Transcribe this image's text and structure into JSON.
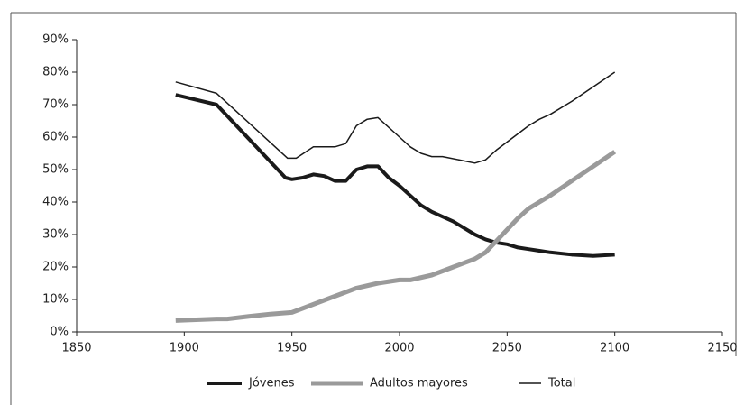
{
  "chart_data": {
    "type": "line",
    "xlim": [
      1850,
      2150
    ],
    "xticks": [
      1850,
      1900,
      1950,
      2000,
      2050,
      2100,
      2150
    ],
    "ylim": [
      0,
      90
    ],
    "yticks": [
      {
        "value": 0,
        "label": "0%"
      },
      {
        "value": 10,
        "label": "10%"
      },
      {
        "value": 20,
        "label": "20%"
      },
      {
        "value": 30,
        "label": "30%"
      },
      {
        "value": 40,
        "label": "40%"
      },
      {
        "value": 50,
        "label": "50%"
      },
      {
        "value": 60,
        "label": "60%"
      },
      {
        "value": 70,
        "label": "70%"
      },
      {
        "value": 80,
        "label": "80%"
      },
      {
        "value": 90,
        "label": "90%"
      }
    ],
    "grid": false,
    "legend": "bottom",
    "series": [
      {
        "name": "Jóvenes",
        "color": "#1a1a1a",
        "line_width": 4,
        "x": [
          1896,
          1915,
          1947,
          1950,
          1955,
          1960,
          1965,
          1970,
          1975,
          1980,
          1985,
          1990,
          1995,
          2000,
          2005,
          2010,
          2015,
          2020,
          2025,
          2030,
          2035,
          2040,
          2045,
          2050,
          2055,
          2060,
          2065,
          2070,
          2080,
          2090,
          2100
        ],
        "values": [
          73,
          70,
          47.5,
          47,
          47.5,
          48.5,
          48,
          46.5,
          46.5,
          50,
          51,
          51,
          47.5,
          45,
          42,
          39,
          37,
          35.5,
          34,
          32,
          30,
          28.5,
          27.5,
          27,
          26,
          25.5,
          25,
          24.5,
          23.8,
          23.4,
          23.8
        ]
      },
      {
        "name": "Adultos mayores",
        "color": "#9a9a9a",
        "line_width": 5,
        "x": [
          1896,
          1915,
          1920,
          1930,
          1940,
          1950,
          1960,
          1970,
          1980,
          1990,
          2000,
          2005,
          2015,
          2025,
          2035,
          2040,
          2045,
          2050,
          2055,
          2060,
          2065,
          2070,
          2080,
          2090,
          2100
        ],
        "values": [
          3.5,
          4,
          4,
          4.8,
          5.5,
          6,
          8.5,
          11,
          13.5,
          15,
          16,
          16,
          17.5,
          20,
          22.5,
          24.5,
          28,
          31.5,
          35,
          38,
          40,
          42,
          46.5,
          51,
          55.5
        ]
      },
      {
        "name": "Total",
        "color": "#1a1a1a",
        "line_width": 1.5,
        "x": [
          1896,
          1915,
          1948,
          1952,
          1960,
          1970,
          1975,
          1980,
          1985,
          1990,
          2000,
          2005,
          2010,
          2015,
          2020,
          2035,
          2040,
          2045,
          2050,
          2055,
          2060,
          2065,
          2070,
          2080,
          2090,
          2100
        ],
        "values": [
          77,
          73.5,
          53.5,
          53.5,
          57,
          57,
          58,
          63.5,
          65.5,
          66,
          60,
          57,
          55,
          54,
          54,
          52,
          53,
          56,
          58.5,
          61,
          63.5,
          65.5,
          67,
          71,
          75.5,
          80
        ]
      }
    ]
  }
}
